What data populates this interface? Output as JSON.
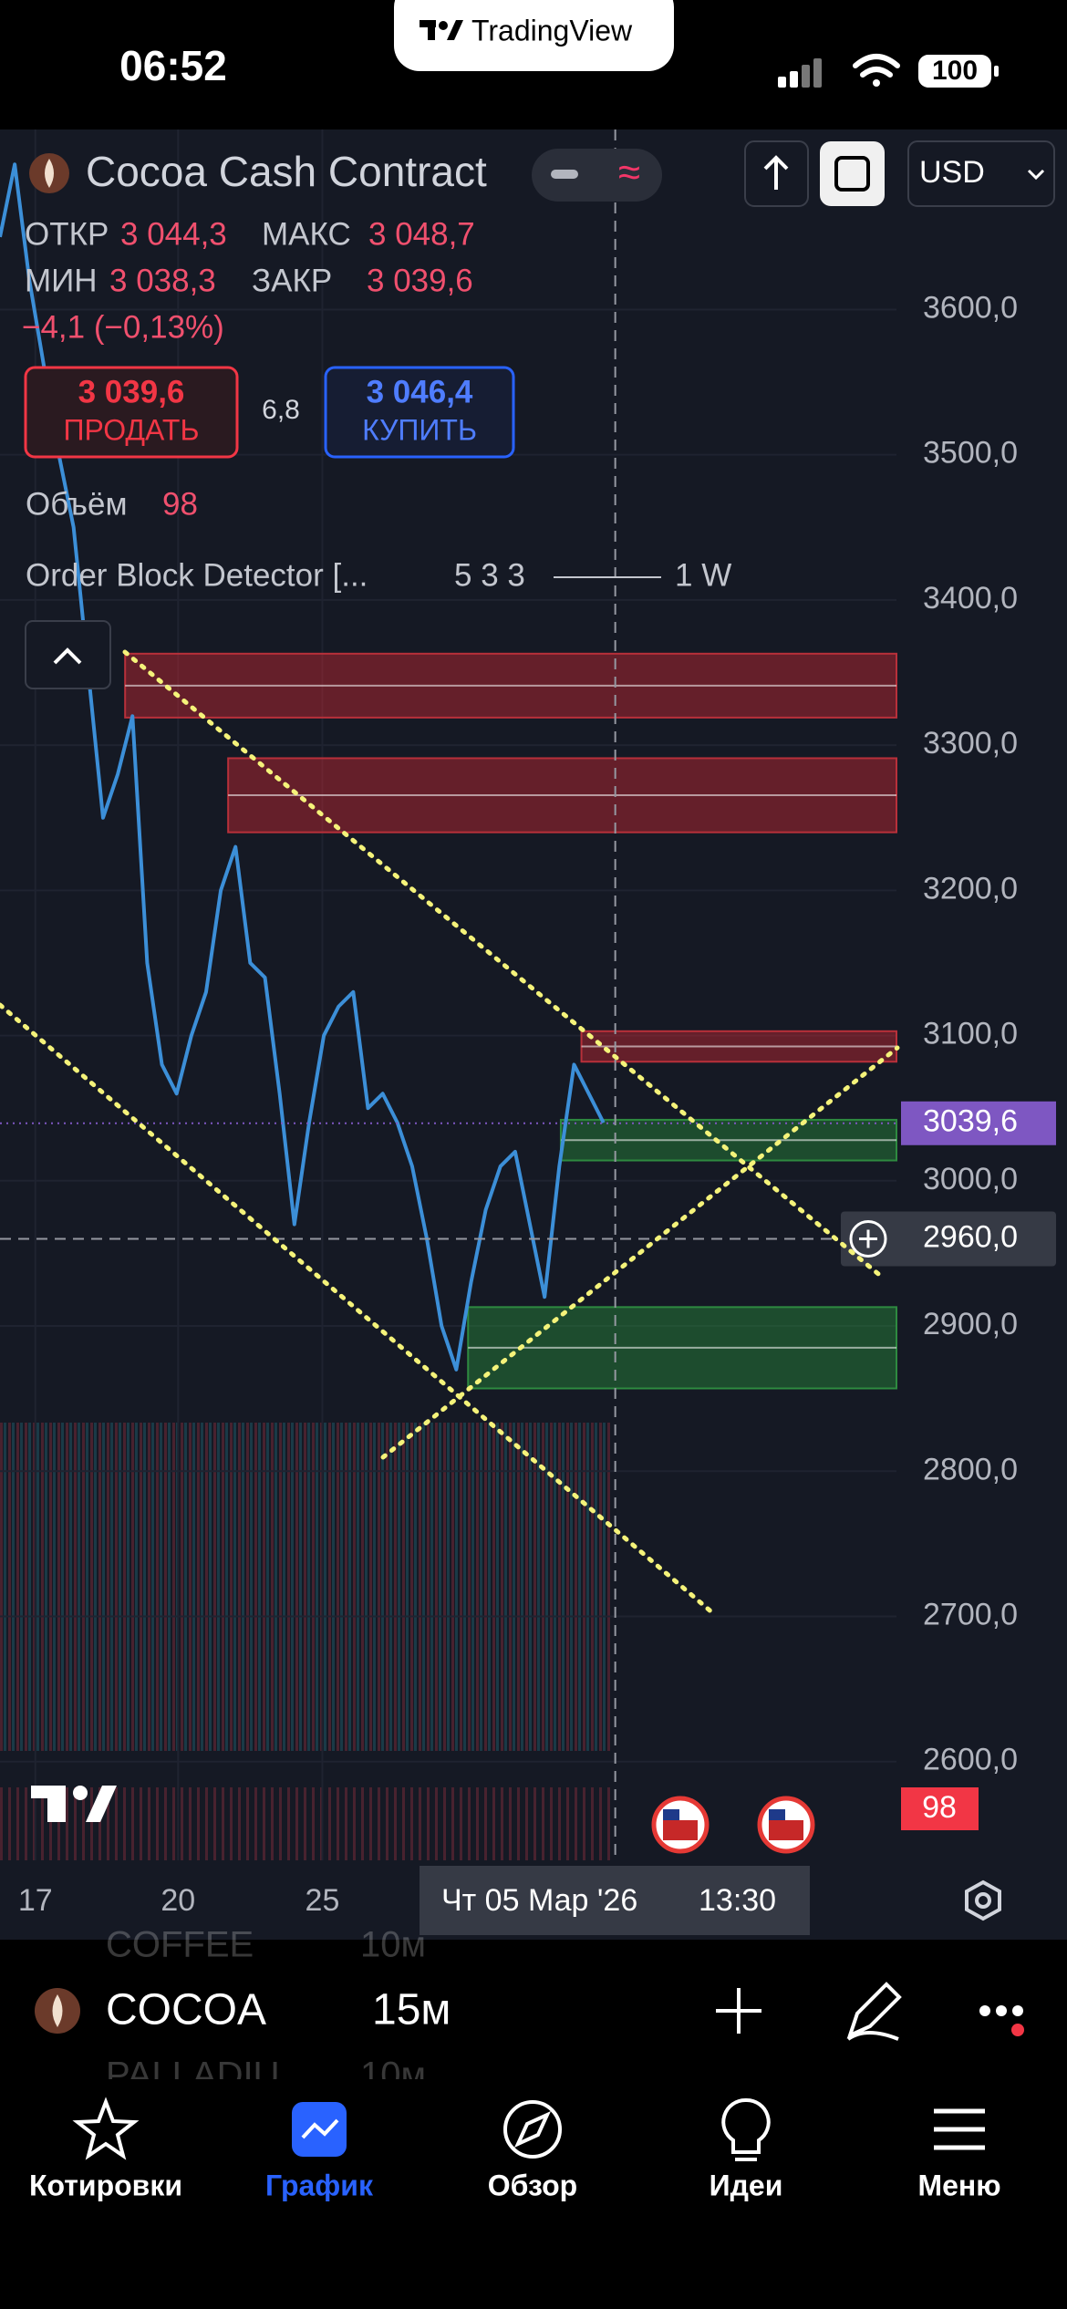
{
  "status_bar": {
    "time": "06:52",
    "battery": "100"
  },
  "app_badge": "TradingView",
  "header": {
    "title": "Cocoa Cash Contract",
    "currency": "USD"
  },
  "ohlc": {
    "open_label": "ОТКР",
    "open": "3 044,3",
    "high_label": "МАКС",
    "high": "3 048,7",
    "low_label": "МИН",
    "low": "3 038,3",
    "close_label": "ЗАКР",
    "close": "3 039,6",
    "change": "−4,1 (−0,13%)"
  },
  "trade": {
    "sell_price": "3 039,6",
    "sell": "ПРОДАТЬ",
    "spread": "6,8",
    "buy_price": "3 046,4",
    "buy": "КУПИТЬ"
  },
  "volume": {
    "label": "Объём",
    "value": "98"
  },
  "indicator": {
    "name": "Order Block Detector [...",
    "params": "5 3 3",
    "line_label": "1 W"
  },
  "chart": {
    "type": "line",
    "color": "#3c8fd8",
    "values": [
      3650,
      3700,
      3620,
      3560,
      3500,
      3450,
      3350,
      3250,
      3280,
      3320,
      3150,
      3080,
      3060,
      3100,
      3130,
      3200,
      3230,
      3150,
      3140,
      3060,
      2970,
      3040,
      3100,
      3120,
      3130,
      3050,
      3060,
      3040,
      3010,
      2960,
      2900,
      2870,
      2930,
      2980,
      3010,
      3020,
      2970,
      2920,
      3010,
      3080,
      3060,
      3040
    ],
    "ylim": [
      2532,
      3724
    ],
    "yticks": [
      {
        "value": 3600,
        "label": "3600,0"
      },
      {
        "value": 3500,
        "label": "3500,0"
      },
      {
        "value": 3400,
        "label": "3400,0"
      },
      {
        "value": 3300,
        "label": "3300,0"
      },
      {
        "value": 3200,
        "label": "3200,0"
      },
      {
        "value": 3100,
        "label": "3100,0"
      },
      {
        "value": 3000,
        "label": "3000,0"
      },
      {
        "value": 2900,
        "label": "2900,0"
      },
      {
        "value": 2800,
        "label": "2800,0"
      },
      {
        "value": 2700,
        "label": "2700,0"
      },
      {
        "value": 2600,
        "label": "2600,0"
      }
    ],
    "xticks": [
      {
        "value": 2.4,
        "label": "17"
      },
      {
        "value": 12.1,
        "label": "20"
      },
      {
        "value": 21.9,
        "label": "25"
      }
    ],
    "last_price": {
      "value": 3039.6,
      "label": "3039,6"
    },
    "crosshair": {
      "price": {
        "value": 2960,
        "label": "2960,0"
      },
      "x": 41.8,
      "date": "Чт 05 Мар '26",
      "time": "13:30"
    },
    "order_blocks": [
      {
        "kind": "bearish",
        "start": 8.5,
        "top": 3363,
        "bottom": 3319
      },
      {
        "kind": "bearish",
        "start": 15.5,
        "top": 3291,
        "bottom": 3240
      },
      {
        "kind": "bearish",
        "start": 39.5,
        "top": 3103,
        "bottom": 3082
      },
      {
        "kind": "bullish",
        "start": 38.1,
        "top": 3042,
        "bottom": 3014
      },
      {
        "kind": "bullish",
        "start": 31.8,
        "top": 2913,
        "bottom": 2857
      }
    ],
    "volume_badge": "98"
  },
  "bottom_panel": {
    "symbol": "COCOA",
    "interval": "15м",
    "ghost_rows": [
      [
        "COFFEE",
        "10м"
      ],
      [
        "PALLADIU",
        "10м"
      ]
    ]
  },
  "tabs": [
    "Котировки",
    "График",
    "Обзор",
    "Идеи",
    "Меню"
  ]
}
